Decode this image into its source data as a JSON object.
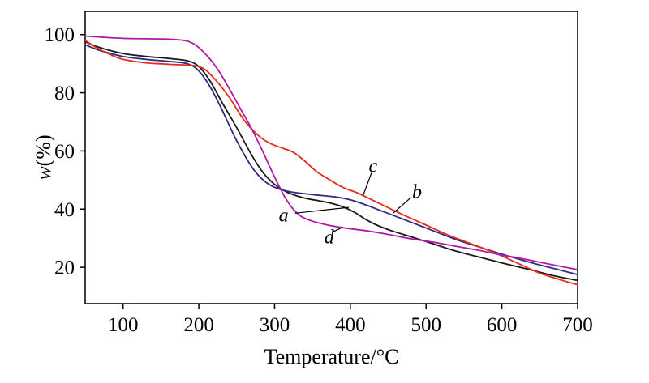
{
  "figure": {
    "background": "#ffffff",
    "description": "Thermogravimetric (TG) curves of four samples labeled a, b, c, d"
  },
  "chart_data": {
    "type": "line",
    "title": "",
    "xlabel": "Temperature/°C",
    "ylabel_italic": "w",
    "ylabel_rest": "(%)",
    "xlim": [
      50,
      700
    ],
    "ylim": [
      7.5,
      108
    ],
    "xticks": [
      100,
      200,
      300,
      400,
      500,
      600,
      700
    ],
    "yticks": [
      20,
      40,
      60,
      80,
      100
    ],
    "grid": false,
    "legend_position": "none",
    "axis_color": "#000000",
    "series": [
      {
        "name": "a",
        "color": "#1a1a1a",
        "points": [
          [
            50,
            97.5
          ],
          [
            70,
            95.5
          ],
          [
            100,
            93.5
          ],
          [
            130,
            92.5
          ],
          [
            160,
            91.8
          ],
          [
            185,
            91
          ],
          [
            200,
            89
          ],
          [
            215,
            84
          ],
          [
            230,
            77
          ],
          [
            250,
            68
          ],
          [
            270,
            58.5
          ],
          [
            285,
            52.5
          ],
          [
            300,
            48.5
          ],
          [
            315,
            46
          ],
          [
            330,
            44.5
          ],
          [
            345,
            43.5
          ],
          [
            360,
            42.8
          ],
          [
            375,
            42
          ],
          [
            390,
            40.8
          ],
          [
            405,
            39
          ],
          [
            420,
            36.5
          ],
          [
            435,
            34.5
          ],
          [
            455,
            32.5
          ],
          [
            480,
            30.5
          ],
          [
            510,
            28
          ],
          [
            540,
            25.5
          ],
          [
            570,
            23.5
          ],
          [
            600,
            21.5
          ],
          [
            640,
            19
          ],
          [
            670,
            17
          ],
          [
            700,
            15.5
          ]
        ]
      },
      {
        "name": "b",
        "color": "#2d2d86",
        "points": [
          [
            50,
            96.5
          ],
          [
            70,
            94.5
          ],
          [
            100,
            92.5
          ],
          [
            130,
            91.5
          ],
          [
            160,
            90.8
          ],
          [
            185,
            90
          ],
          [
            200,
            87.5
          ],
          [
            215,
            82
          ],
          [
            230,
            74.5
          ],
          [
            250,
            63.5
          ],
          [
            270,
            54.5
          ],
          [
            285,
            50
          ],
          [
            300,
            47.5
          ],
          [
            320,
            46
          ],
          [
            350,
            45
          ],
          [
            380,
            44.2
          ],
          [
            400,
            43.2
          ],
          [
            420,
            41.5
          ],
          [
            440,
            39.5
          ],
          [
            460,
            37.5
          ],
          [
            485,
            35
          ],
          [
            510,
            32.5
          ],
          [
            540,
            29.5
          ],
          [
            570,
            27
          ],
          [
            600,
            24.5
          ],
          [
            640,
            21.5
          ],
          [
            670,
            19.5
          ],
          [
            700,
            17.5
          ]
        ]
      },
      {
        "name": "c",
        "color": "#e8291c",
        "points": [
          [
            50,
            98
          ],
          [
            65,
            95.5
          ],
          [
            80,
            93.5
          ],
          [
            100,
            91.5
          ],
          [
            130,
            90.3
          ],
          [
            160,
            89.8
          ],
          [
            200,
            89
          ],
          [
            220,
            85
          ],
          [
            240,
            78.5
          ],
          [
            260,
            70.5
          ],
          [
            280,
            65
          ],
          [
            295,
            62.5
          ],
          [
            310,
            61
          ],
          [
            325,
            59.5
          ],
          [
            340,
            56.5
          ],
          [
            355,
            53
          ],
          [
            370,
            50.5
          ],
          [
            390,
            47.5
          ],
          [
            410,
            45.5
          ],
          [
            430,
            43
          ],
          [
            450,
            40.5
          ],
          [
            470,
            38
          ],
          [
            500,
            34.5
          ],
          [
            530,
            31
          ],
          [
            560,
            28
          ],
          [
            590,
            25
          ],
          [
            620,
            21.5
          ],
          [
            650,
            18
          ],
          [
            680,
            15.5
          ],
          [
            700,
            14
          ]
        ]
      },
      {
        "name": "d",
        "color": "#b01aa7",
        "points": [
          [
            50,
            99.5
          ],
          [
            100,
            98.7
          ],
          [
            150,
            98.5
          ],
          [
            180,
            98
          ],
          [
            195,
            96.5
          ],
          [
            210,
            93
          ],
          [
            225,
            88
          ],
          [
            240,
            81.5
          ],
          [
            255,
            74.5
          ],
          [
            270,
            67.5
          ],
          [
            285,
            59.5
          ],
          [
            300,
            51
          ],
          [
            315,
            43.5
          ],
          [
            330,
            38.5
          ],
          [
            345,
            36.3
          ],
          [
            365,
            34.8
          ],
          [
            390,
            33.6
          ],
          [
            420,
            32.6
          ],
          [
            450,
            31.3
          ],
          [
            480,
            29.8
          ],
          [
            510,
            28.6
          ],
          [
            540,
            27.2
          ],
          [
            570,
            25.8
          ],
          [
            600,
            24.2
          ],
          [
            630,
            22.8
          ],
          [
            660,
            21.2
          ],
          [
            700,
            19.2
          ]
        ]
      }
    ],
    "annotations": [
      {
        "label": "a",
        "text_x": 312,
        "text_y": 38,
        "line": [
          [
            327,
            38.6
          ],
          [
            398,
            40.6
          ]
        ]
      },
      {
        "label": "c",
        "text_x": 430,
        "text_y": 55,
        "line": [
          [
            428,
            52.5
          ],
          [
            417,
            44.8
          ]
        ]
      },
      {
        "label": "b",
        "text_x": 488,
        "text_y": 46,
        "line": [
          [
            480,
            44
          ],
          [
            456,
            38.5
          ]
        ]
      },
      {
        "label": "d",
        "text_x": 372,
        "text_y": 30.5,
        "line": [
          [
            378,
            32.3
          ],
          [
            390,
            33.8
          ]
        ]
      }
    ]
  }
}
